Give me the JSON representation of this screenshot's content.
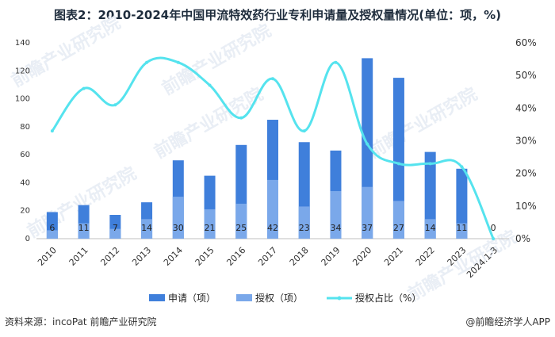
{
  "title": "图表2：2010-2024年中国甲流特效药行业专利申请量及授权量情况(单位：项，%)",
  "footer": {
    "source": "资料来源：incoPat 前瞻产业研究院",
    "brand": "@前瞻经济学人APP"
  },
  "watermark": {
    "text": "前瞻产业研究院"
  },
  "colors": {
    "applications": "#3f7fdb",
    "grants": "#7aa8ea",
    "ratio": "#55e3ee",
    "axis": "#bfbfbf"
  },
  "chart_data": {
    "type": "bar",
    "title": "图表2：2010-2024年中国甲流特效药行业专利申请量及授权量情况(单位：项，%)",
    "categories": [
      "2010",
      "2011",
      "2012",
      "2013",
      "2014",
      "2015",
      "2016",
      "2017",
      "2018",
      "2019",
      "2020",
      "2021",
      "2022",
      "2023",
      "2024.1-3"
    ],
    "series": [
      {
        "name": "申请（项）",
        "type": "bar",
        "axis": "left",
        "values": [
          19,
          24,
          17,
          26,
          56,
          45,
          67,
          85,
          69,
          63,
          129,
          115,
          62,
          50,
          0
        ]
      },
      {
        "name": "授权（项）",
        "type": "bar",
        "axis": "left",
        "values": [
          6,
          11,
          7,
          14,
          30,
          21,
          25,
          42,
          23,
          34,
          37,
          27,
          14,
          11,
          0
        ]
      },
      {
        "name": "授权占比（%）",
        "type": "line",
        "axis": "right",
        "values": [
          33,
          46,
          41,
          54,
          54,
          47,
          37,
          49,
          33,
          54,
          29,
          23,
          23,
          22,
          0
        ]
      }
    ],
    "bar_labels": [
      "6",
      "11",
      "7",
      "14",
      "30",
      "21",
      "25",
      "42",
      "23",
      "34",
      "37",
      "27",
      "14",
      "11",
      "0"
    ],
    "y_left": {
      "min": 0,
      "max": 140,
      "ticks": [
        "0",
        "20",
        "40",
        "60",
        "80",
        "100",
        "120",
        "140"
      ]
    },
    "y_right": {
      "min": 0,
      "max": 60,
      "ticks": [
        "0%",
        "10%",
        "20%",
        "30%",
        "40%",
        "50%",
        "60%"
      ]
    },
    "legend": [
      "申请（项）",
      "授权（项）",
      "授权占比（%）"
    ],
    "legend_position": "bottom"
  }
}
